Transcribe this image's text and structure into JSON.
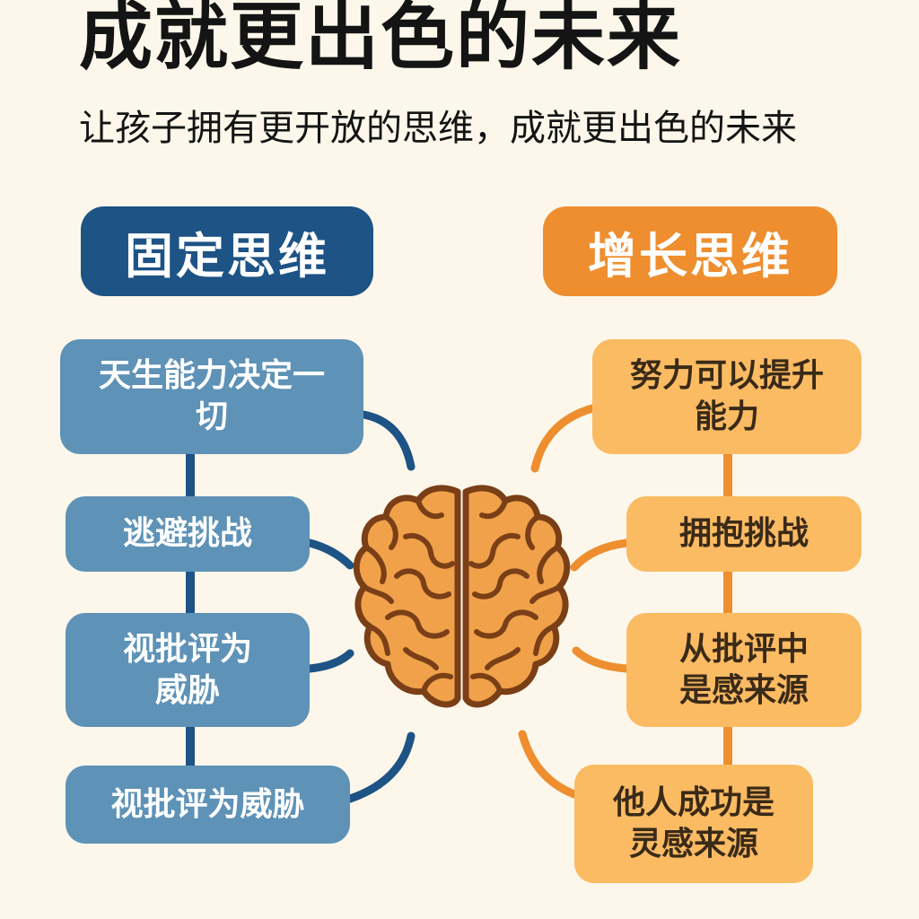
{
  "title": "成就更出色的未来",
  "subtitle": "让孩子拥有更开放的思维，成就更出色的未来",
  "fixed_mindset": {
    "header": "固定思维",
    "items": [
      {
        "text": "天生能力决定一切"
      },
      {
        "text": "逃避挑战"
      },
      {
        "text": "视批评为威胁"
      },
      {
        "text": "视批评为威胁"
      }
    ]
  },
  "growth_mindset": {
    "header": "增长思维",
    "items": [
      {
        "text": "努力可以提升能力"
      },
      {
        "text": "拥抱挑战"
      },
      {
        "text": "从批评中是感来源"
      },
      {
        "text": "他人成功是灵感来源"
      }
    ]
  },
  "icons": {
    "center": "brain-icon"
  },
  "colors": {
    "background": "#fcf7ea",
    "fixed_dark": "#1d5385",
    "fixed_box": "#5e92b7",
    "growth_dark": "#ee8e2f",
    "growth_box": "#fbbb63",
    "brain_fill": "#f0a14a",
    "brain_stroke": "#7a3f16"
  }
}
